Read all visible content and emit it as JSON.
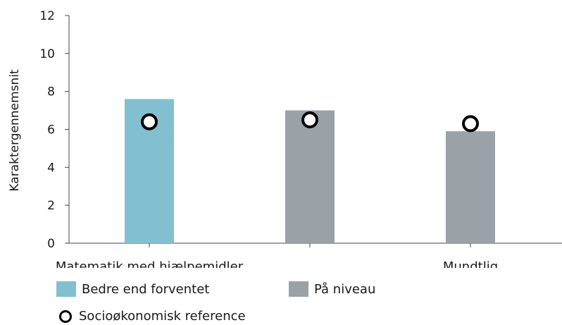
{
  "chart_data": {
    "type": "bar",
    "categories": [
      "Matematik med hjælpemidler",
      "",
      "Mundtlig"
    ],
    "series": [
      {
        "name": "Bedre end forventet",
        "values": [
          7.6,
          null,
          null
        ],
        "color": "#82c0d1"
      },
      {
        "name": "På niveau",
        "values": [
          null,
          7.0,
          5.9
        ],
        "color": "#9aa1a7"
      },
      {
        "name": "Socioøkonomisk reference",
        "type": "marker",
        "values": [
          6.4,
          6.5,
          6.3
        ],
        "color": "#000000"
      }
    ],
    "ylabel": "Karaktergennemsnit",
    "xlabel": "",
    "ylim": [
      0,
      12
    ],
    "yticks": [
      0,
      2,
      4,
      6,
      8,
      10,
      12
    ],
    "grid": false,
    "legend_position": "bottom-left"
  },
  "legend": {
    "bedre": "Bedre end forventet",
    "niveau": "På niveau",
    "socio": "Socioøkonomisk reference"
  }
}
